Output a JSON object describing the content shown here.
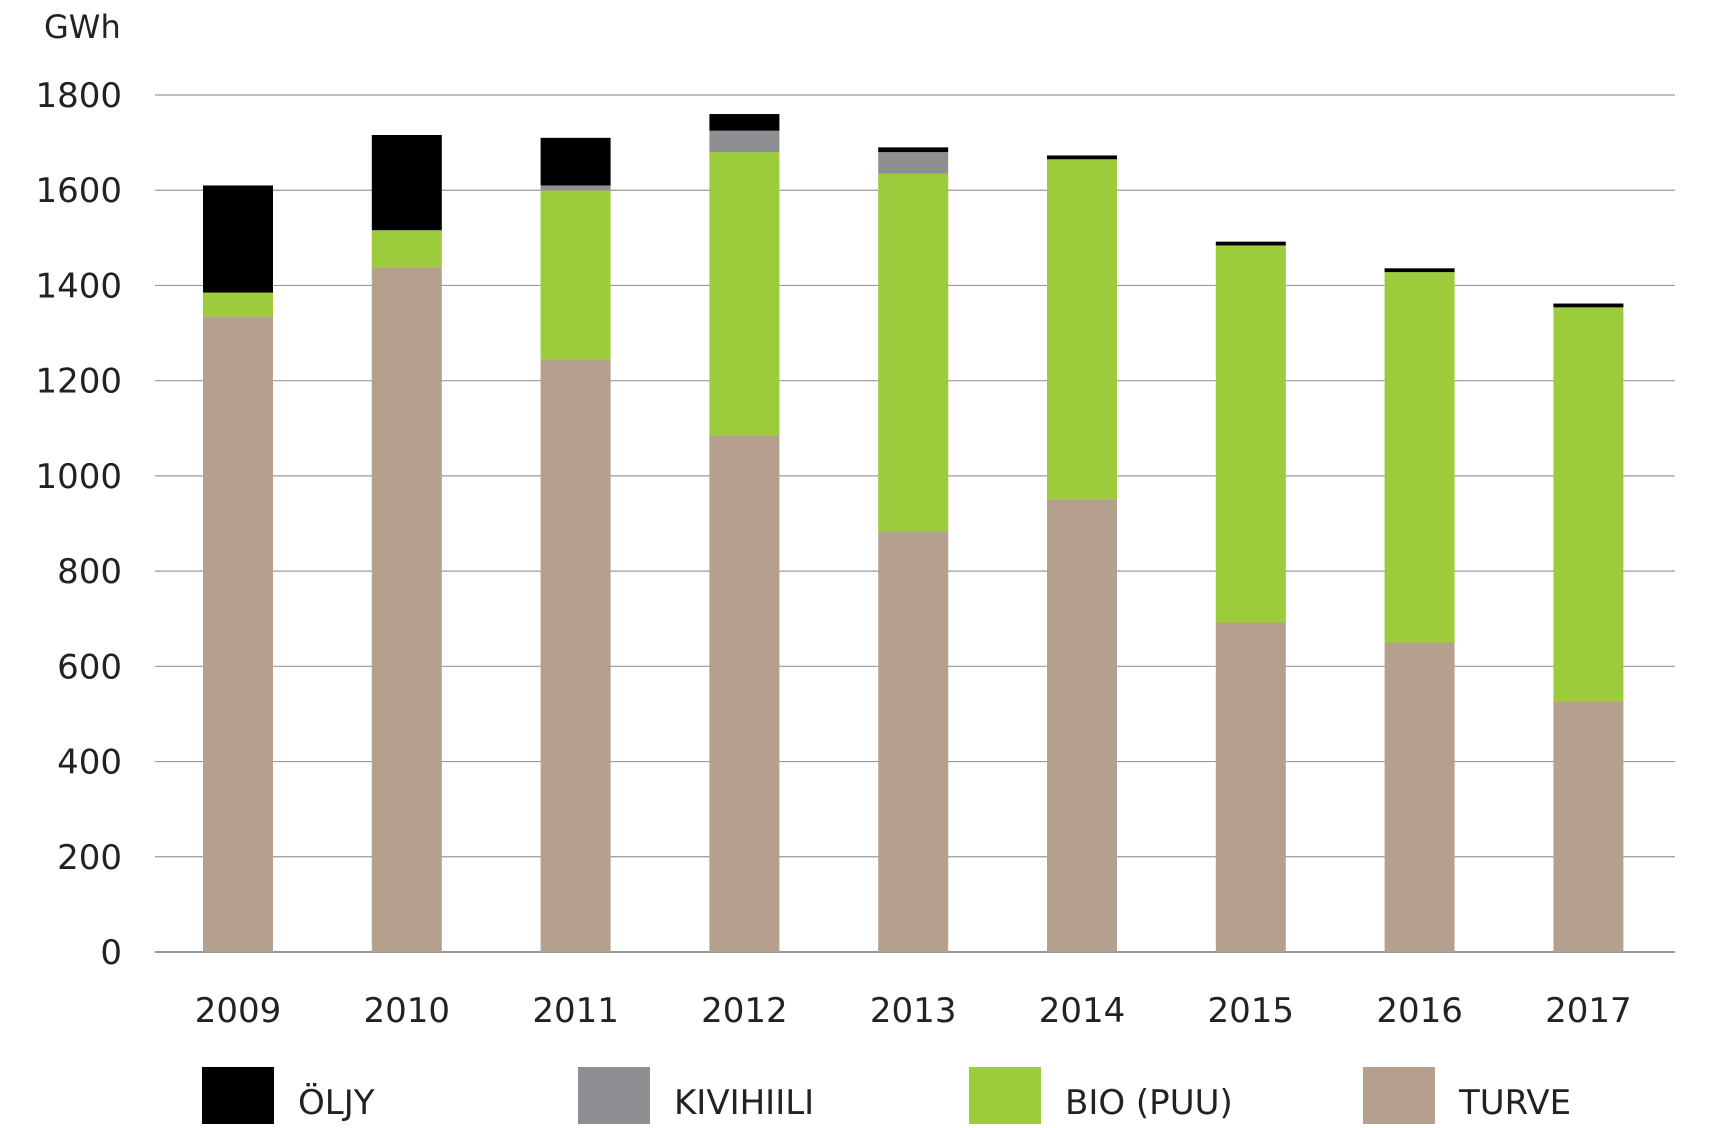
{
  "chart_data": {
    "type": "bar",
    "stacked": true,
    "unit": "GWh",
    "categories": [
      "2009",
      "2010",
      "2011",
      "2012",
      "2013",
      "2014",
      "2015",
      "2016",
      "2017"
    ],
    "series": [
      {
        "name": "TURVE",
        "color": "#b5a08e",
        "values": [
          1335,
          1438,
          1245,
          1085,
          882,
          951,
          692,
          650,
          527
        ]
      },
      {
        "name": "BIO (PUU)",
        "color": "#9ccb3b",
        "values": [
          50,
          78,
          355,
          595,
          753,
          714,
          792,
          778,
          827
        ]
      },
      {
        "name": "KIVIHIILI",
        "color": "#8d8f92",
        "values": [
          0,
          0,
          10,
          45,
          45,
          0,
          0,
          0,
          0
        ]
      },
      {
        "name": "ÖLJY",
        "color": "#000000",
        "values": [
          225,
          200,
          100,
          35,
          10,
          8,
          8,
          8,
          8
        ]
      }
    ],
    "y_ticks": [
      "0",
      "200",
      "400",
      "600",
      "800",
      "1000",
      "1200",
      "1400",
      "1600",
      "1800"
    ],
    "ylim": [
      0,
      1800
    ],
    "grid": true,
    "legend_position": "bottom",
    "legend_order": [
      "ÖLJY",
      "KIVIHIILI",
      "BIO (PUU)",
      "TURVE"
    ]
  }
}
